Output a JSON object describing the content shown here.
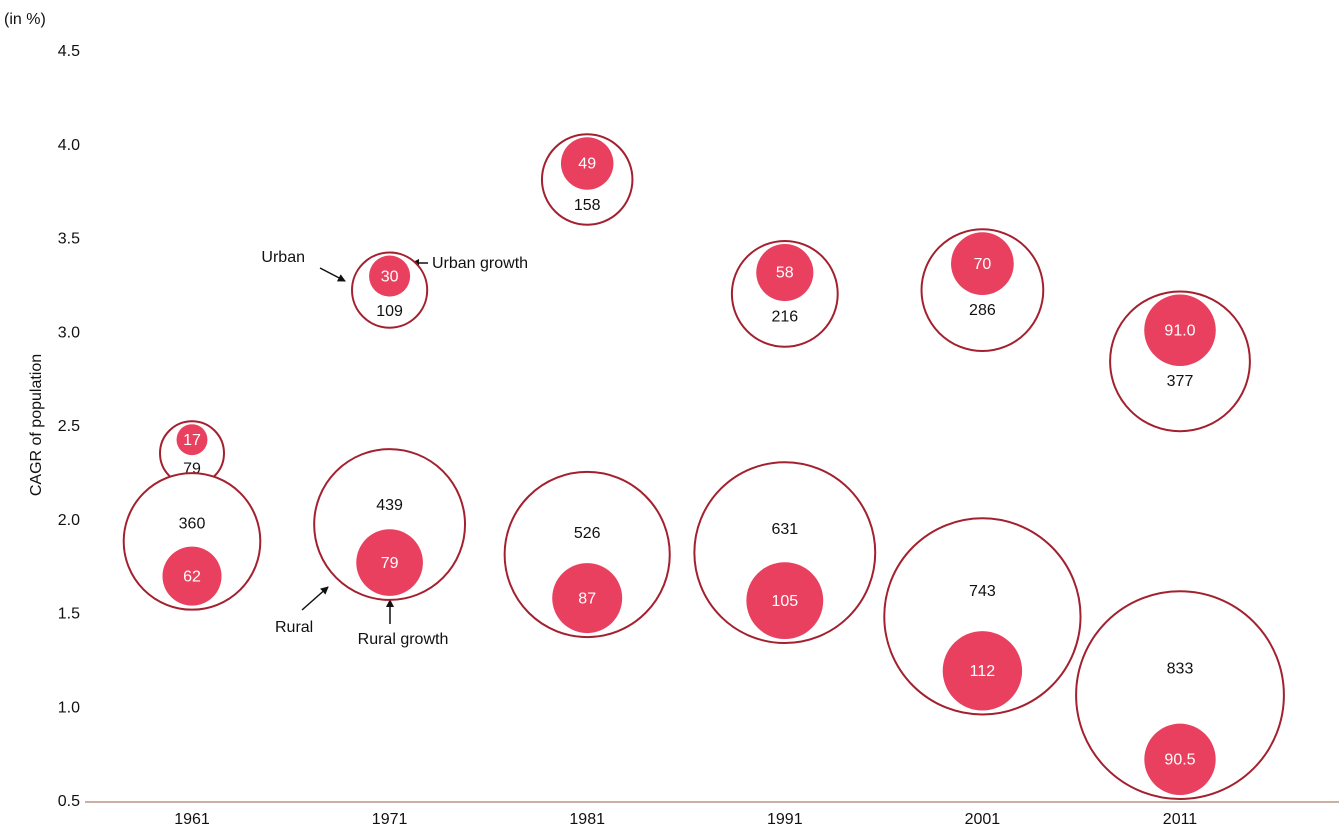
{
  "chart_data": {
    "type": "bubble",
    "unit_label": "(in %)",
    "y_label": "CAGR of population",
    "categories": [
      "1961",
      "1971",
      "1981",
      "1991",
      "2001",
      "2011"
    ],
    "ylim": [
      0.5,
      4.5
    ],
    "yticks": [
      0.5,
      {
        "value": 1,
        "label": "1.0"
      },
      1.5,
      {
        "value": 2,
        "label": "2.0"
      },
      2.5,
      {
        "value": 3,
        "label": "3.0"
      },
      3.5,
      {
        "value": 4,
        "label": "4.0"
      },
      4.5
    ],
    "series": [
      {
        "name": "Urban",
        "color": "#a3212f",
        "values": [
          2.36,
          3.23,
          3.82,
          3.21,
          3.23,
          2.85
        ],
        "sizes": [
          79,
          109,
          158,
          216,
          286,
          377
        ]
      },
      {
        "name": "Rural",
        "color": "#a3212f",
        "values": [
          1.89,
          1.98,
          1.82,
          1.83,
          1.49,
          1.07
        ],
        "sizes": [
          360,
          439,
          526,
          631,
          743,
          833
        ]
      }
    ],
    "growth": [
      {
        "name": "Urban growth",
        "color": "#e8405e",
        "values": [
          17,
          30,
          49,
          58,
          70,
          91
        ],
        "value_labels": [
          "17",
          "30",
          "49",
          "58",
          "70",
          "91.0"
        ]
      },
      {
        "name": "Rural growth",
        "color": "#e8405e",
        "values": [
          62,
          79,
          87,
          105,
          112,
          90.5
        ],
        "value_labels": [
          "62",
          "79",
          "87",
          "105",
          "112",
          "90.5"
        ]
      }
    ]
  }
}
